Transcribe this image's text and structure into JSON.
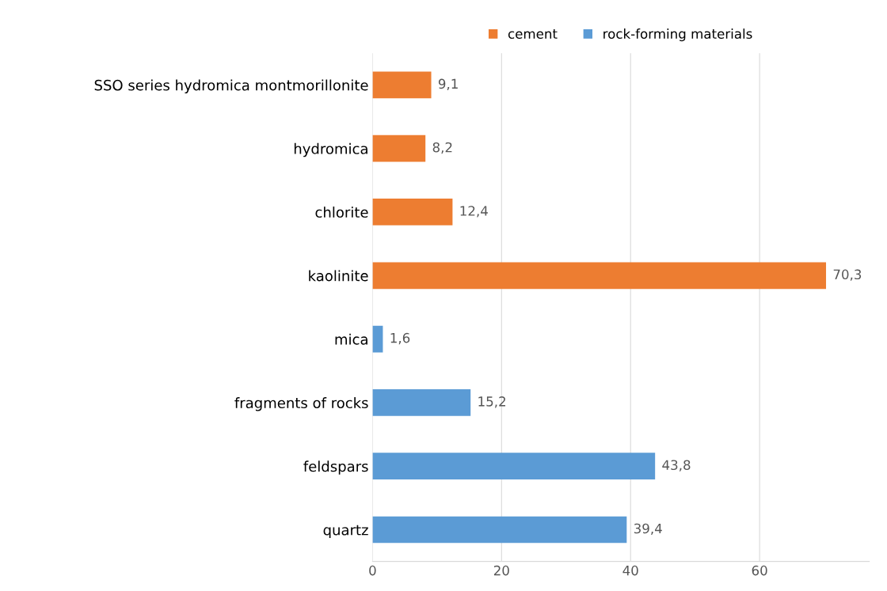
{
  "chart_data": {
    "type": "bar",
    "orientation": "horizontal",
    "categories": [
      "SSO series hydromica montmorillonite",
      "hydromica",
      "chlorite",
      "kaolinite",
      "mica",
      "fragments of rocks",
      "feldspars",
      "quartz"
    ],
    "series": [
      {
        "name": "cement",
        "color": "#ed7d31",
        "values": [
          9.1,
          8.2,
          12.4,
          70.3,
          null,
          null,
          null,
          null
        ],
        "value_labels": [
          "9,1",
          "8,2",
          "12,4",
          "70,3",
          null,
          null,
          null,
          null
        ]
      },
      {
        "name": "rock-forming materials",
        "color": "#5b9bd5",
        "values": [
          null,
          null,
          null,
          null,
          1.6,
          15.2,
          43.8,
          39.4
        ],
        "value_labels": [
          null,
          null,
          null,
          null,
          "1,6",
          "15,2",
          "43,8",
          "39,4"
        ]
      }
    ],
    "xlim": [
      0,
      77
    ],
    "xticks": [
      0,
      20,
      40,
      60
    ],
    "grid": "x",
    "legend": "top"
  }
}
